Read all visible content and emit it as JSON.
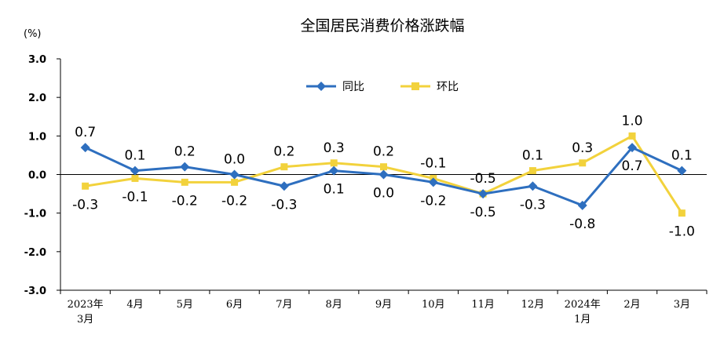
{
  "chart_data": {
    "type": "line",
    "title": "全国居民消费价格涨跌幅",
    "ylabel": "(%)",
    "xlabel": "",
    "ylim": [
      -3.0,
      3.0
    ],
    "yticks": [
      "3.0",
      "2.0",
      "1.0",
      "0.0",
      "-1.0",
      "-2.0",
      "-3.0"
    ],
    "grid": false,
    "legend_position": "top-center",
    "categories": [
      [
        "2023年",
        "3月"
      ],
      [
        "4月"
      ],
      [
        "5月"
      ],
      [
        "6月"
      ],
      [
        "7月"
      ],
      [
        "8月"
      ],
      [
        "9月"
      ],
      [
        "10月"
      ],
      [
        "11月"
      ],
      [
        "12月"
      ],
      [
        "2024年",
        "1月"
      ],
      [
        "2月"
      ],
      [
        "3月"
      ]
    ],
    "series": [
      {
        "name": "同比",
        "color": "#2e6fbf",
        "marker": "diamond",
        "values": [
          0.7,
          0.1,
          0.2,
          0.0,
          -0.3,
          0.1,
          0.0,
          -0.2,
          -0.5,
          -0.3,
          -0.8,
          0.7,
          0.1
        ],
        "labels": [
          "0.7",
          "0.1",
          "0.2",
          "0.0",
          "-0.3",
          "0.1",
          "0.0",
          "-0.2",
          "-0.5",
          "-0.3",
          "-0.8",
          "0.7",
          "0.1"
        ]
      },
      {
        "name": "环比",
        "color": "#f2d23c",
        "marker": "square",
        "values": [
          -0.3,
          -0.1,
          -0.2,
          -0.2,
          0.2,
          0.3,
          0.2,
          -0.1,
          -0.5,
          0.1,
          0.3,
          1.0,
          -1.0
        ],
        "labels": [
          "-0.3",
          "-0.1",
          "-0.2",
          "-0.2",
          "0.2",
          "0.3",
          "0.2",
          "-0.1",
          "-0.5",
          "0.1",
          "0.3",
          "1.0",
          "-1.0"
        ]
      }
    ]
  }
}
